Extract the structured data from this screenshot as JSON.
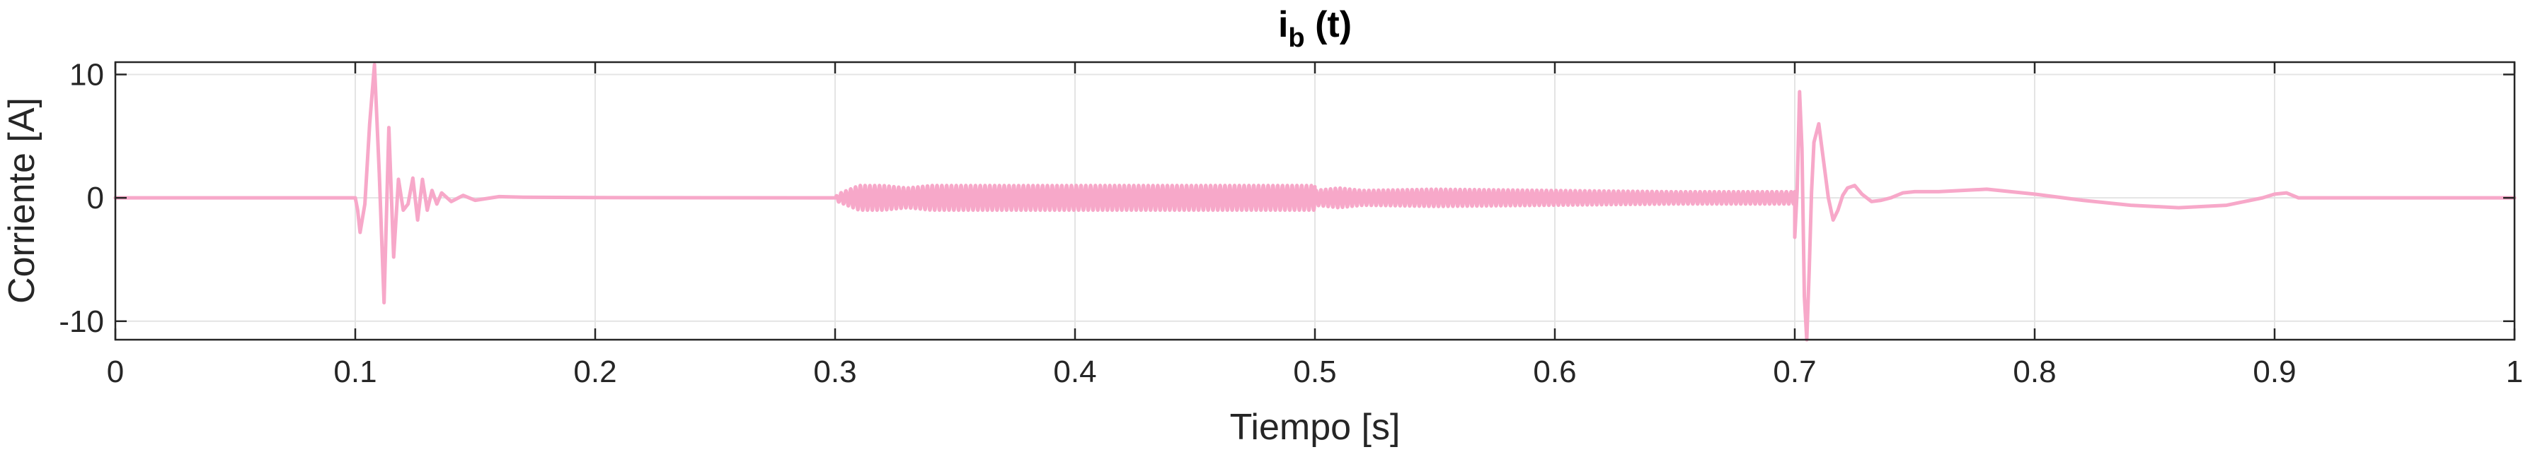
{
  "chart_data": {
    "type": "line",
    "title": {
      "base": "i",
      "subscript": "b",
      "suffix": " (t)"
    },
    "xlabel": "Tiempo [s]",
    "ylabel": "Corriente [A]",
    "xlim": [
      0,
      1
    ],
    "ylim": [
      -11.5,
      11
    ],
    "xticks": [
      0,
      0.1,
      0.2,
      0.3,
      0.4,
      0.5,
      0.6,
      0.7,
      0.8,
      0.9,
      1
    ],
    "xtick_labels": [
      "0",
      "0.1",
      "0.2",
      "0.3",
      "0.4",
      "0.5",
      "0.6",
      "0.7",
      "0.8",
      "0.9",
      "1"
    ],
    "yticks": [
      -10,
      0,
      10
    ],
    "ytick_labels": [
      "-10",
      "0",
      "10"
    ],
    "grid": true,
    "line_color": "#f7a8c9",
    "series": [
      {
        "x": [
          0,
          0.1,
          0.101,
          0.102,
          0.104,
          0.106,
          0.108,
          0.11,
          0.112,
          0.114,
          0.116,
          0.118,
          0.12,
          0.122,
          0.124,
          0.126,
          0.128,
          0.13,
          0.132,
          0.134,
          0.136,
          0.14,
          0.145,
          0.15,
          0.16,
          0.17,
          0.2,
          0.3,
          0.301,
          0.31,
          0.32,
          0.33,
          0.34,
          0.35,
          0.4,
          0.5,
          0.5,
          0.51,
          0.52,
          0.55,
          0.6,
          0.65,
          0.7,
          0.7,
          0.701,
          0.702,
          0.703,
          0.704,
          0.705,
          0.706,
          0.707,
          0.708,
          0.71,
          0.712,
          0.714,
          0.716,
          0.718,
          0.72,
          0.722,
          0.725,
          0.728,
          0.732,
          0.736,
          0.74,
          0.745,
          0.75,
          0.76,
          0.77,
          0.78,
          0.79,
          0.8,
          0.82,
          0.84,
          0.86,
          0.88,
          0.895,
          0.9,
          0.905,
          0.91,
          0.92,
          0.95,
          1.0
        ],
        "y": [
          0,
          0,
          -1.0,
          -2.8,
          -0.5,
          6.0,
          10.8,
          2.0,
          -8.5,
          5.7,
          -4.8,
          1.5,
          -1.0,
          -0.5,
          1.6,
          -1.8,
          1.5,
          -1.0,
          0.6,
          -0.5,
          0.4,
          -0.3,
          0.2,
          -0.2,
          0.1,
          0.05,
          0.02,
          0,
          0.5,
          1.0,
          1.0,
          0.8,
          1.0,
          0.9,
          0.9,
          0.9,
          0.4,
          0.8,
          0.6,
          0.7,
          0.6,
          0.5,
          0.5,
          -3.2,
          0.6,
          8.6,
          4.0,
          -8.0,
          -11.5,
          -6.0,
          0.5,
          4.5,
          6.0,
          3.0,
          0.0,
          -1.8,
          -1.0,
          0.2,
          0.8,
          1.0,
          0.3,
          -0.3,
          -0.2,
          0.0,
          0.4,
          0.5,
          0.5,
          0.6,
          0.7,
          0.5,
          0.3,
          -0.2,
          -0.6,
          -0.8,
          -0.6,
          0.0,
          0.3,
          0.4,
          0.0,
          0.0,
          0.0,
          0.0
        ],
        "oscillation_amplitude": [
          0,
          0,
          0,
          0,
          0,
          0,
          0,
          0,
          0,
          0,
          0,
          0,
          0,
          0,
          0,
          0,
          0,
          0,
          0,
          0,
          0,
          0,
          0,
          0,
          0,
          0,
          0,
          0,
          0.3,
          1.0,
          1.0,
          0.8,
          1.0,
          1.0,
          1.0,
          1.0,
          0.6,
          0.8,
          0.6,
          0.7,
          0.6,
          0.5,
          0.5,
          0,
          0,
          0,
          0,
          0,
          0,
          0,
          0,
          0,
          0,
          0,
          0,
          0,
          0,
          0,
          0,
          0,
          0,
          0,
          0,
          0,
          0,
          0,
          0,
          0,
          0,
          0,
          0,
          0,
          0,
          0,
          0,
          0,
          0,
          0,
          0,
          0,
          0,
          0
        ],
        "oscillation_frequency_hz": 500
      }
    ]
  }
}
